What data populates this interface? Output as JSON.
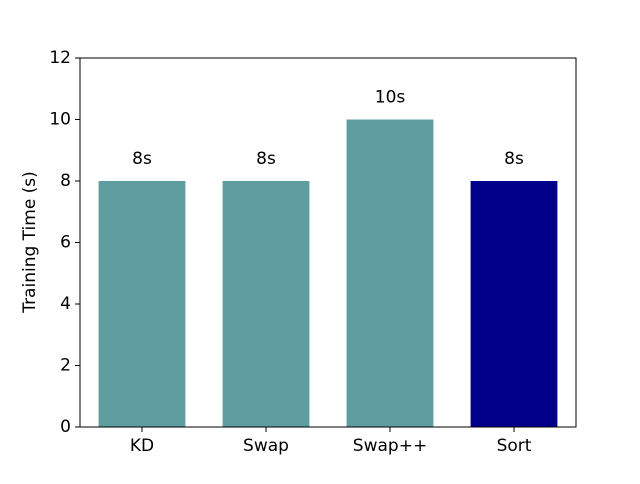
{
  "chart_data": {
    "type": "bar",
    "ylabel": "Training Time (s)",
    "categories": [
      "KD",
      "Swap",
      "Swap++",
      "Sort"
    ],
    "values": [
      8,
      8,
      10,
      8
    ],
    "value_labels": [
      "8s",
      "8s",
      "10s",
      "8s"
    ],
    "colors": [
      "#5f9ea0",
      "#5f9ea0",
      "#5f9ea0",
      "#00008b"
    ],
    "ylim": [
      0,
      12
    ],
    "yticks": [
      0,
      2,
      4,
      6,
      8,
      10,
      12
    ],
    "grid": false
  }
}
